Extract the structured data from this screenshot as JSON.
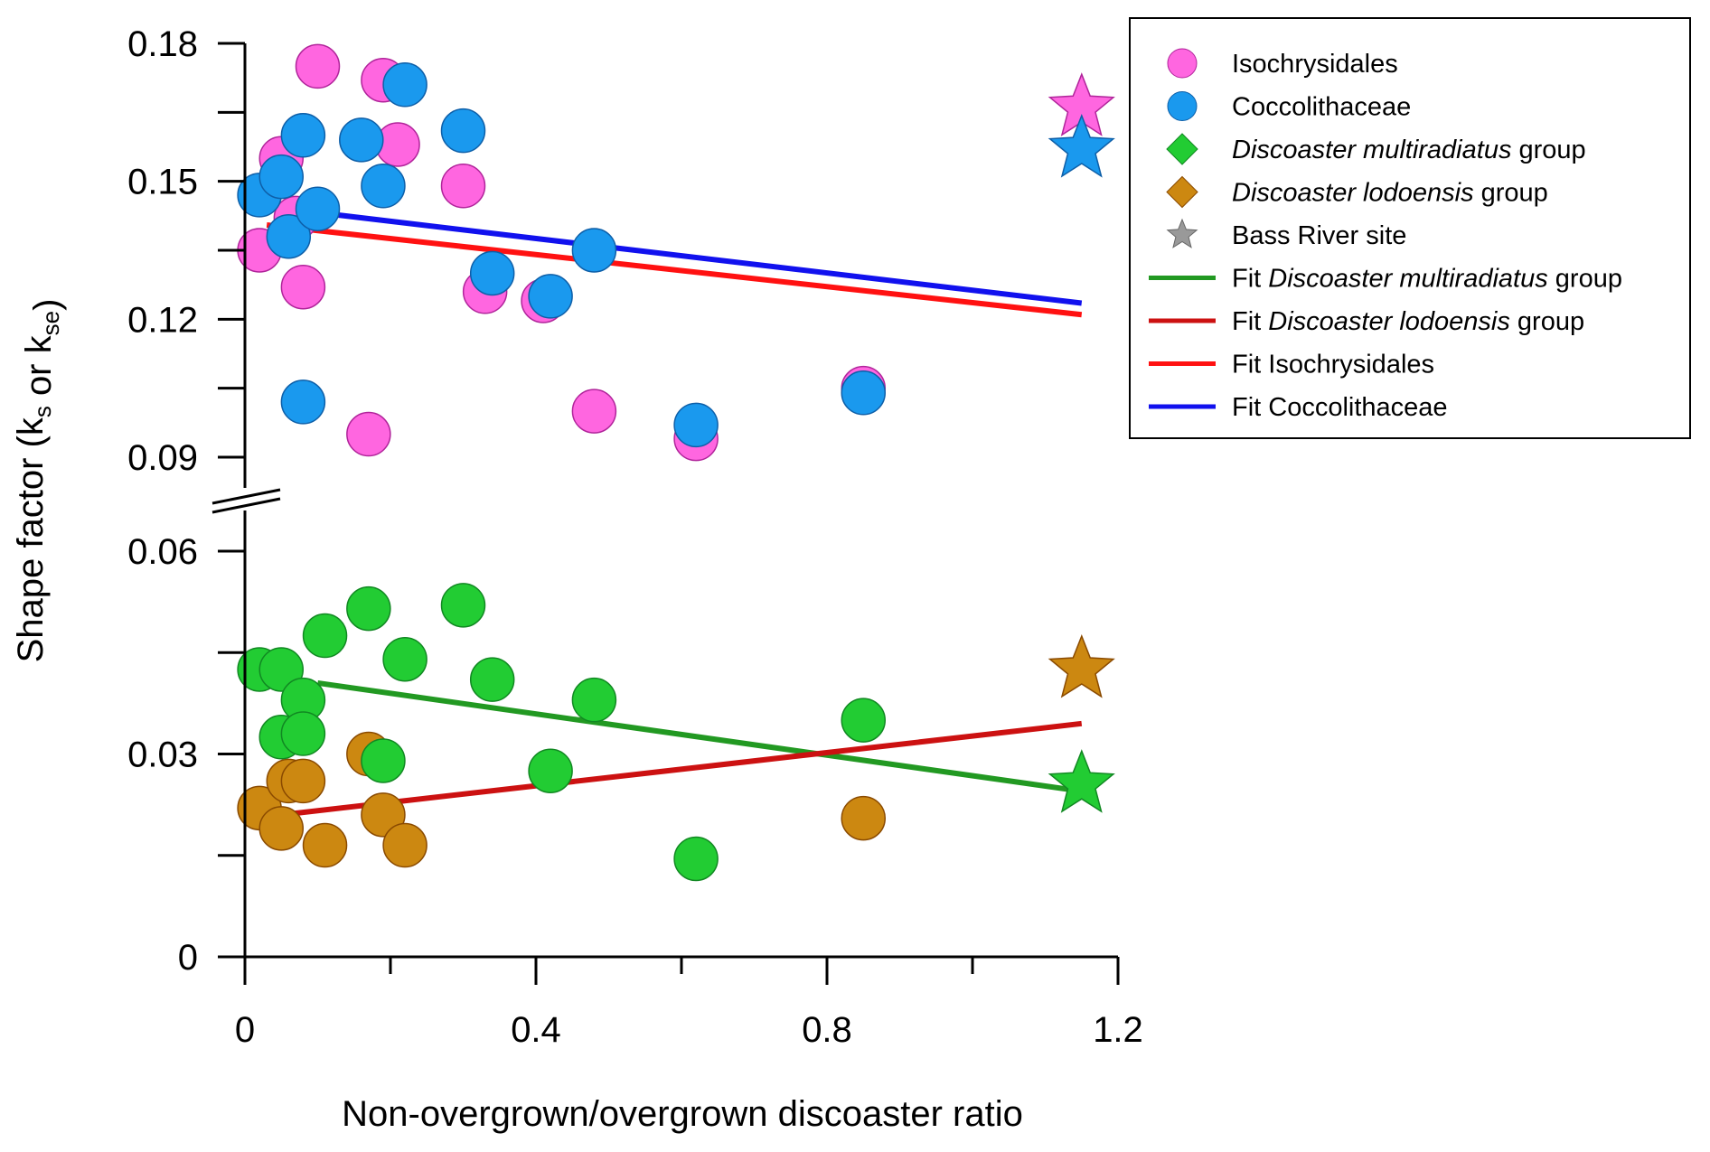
{
  "chart_data": {
    "type": "scatter",
    "xlabel": "Non-overgrown/overgrown discoaster ratio",
    "ylabel": {
      "main": "Shape factor (k",
      "sub1": "s",
      "mid": " or k",
      "sub2": "se",
      "end": ")"
    },
    "xlim": [
      0,
      1.2
    ],
    "x_ticks_major": [
      "0",
      "0.4",
      "0.8",
      "1.2"
    ],
    "x_ticks_major_values": [
      0,
      0.4,
      0.8,
      1.2
    ],
    "x_ticks_minor_values": [
      0.2,
      0.6,
      1.0
    ],
    "axis_break": {
      "between": [
        0.06,
        0.09
      ]
    },
    "y_ticks_major": [
      "0",
      "0.03",
      "0.06",
      "0.09",
      "0.12",
      "0.15",
      "0.18"
    ],
    "y_ticks_major_values": [
      0,
      0.03,
      0.06,
      0.09,
      0.12,
      0.15,
      0.18
    ],
    "y_ticks_minor_values": [
      0.015,
      0.045,
      0.105,
      0.135,
      0.165
    ],
    "grid": false,
    "legend_position": "top-right outside",
    "series": [
      {
        "name": "Isochrysidales",
        "marker": "circle",
        "color": "#ff66e0",
        "edge": "#b0249a",
        "points": [
          [
            0.02,
            0.135
          ],
          [
            0.05,
            0.155
          ],
          [
            0.07,
            0.142
          ],
          [
            0.08,
            0.127
          ],
          [
            0.1,
            0.175
          ],
          [
            0.19,
            0.172
          ],
          [
            0.21,
            0.158
          ],
          [
            0.3,
            0.149
          ],
          [
            0.33,
            0.126
          ],
          [
            0.41,
            0.124
          ],
          [
            0.48,
            0.1
          ],
          [
            0.62,
            0.094
          ],
          [
            0.85,
            0.105
          ],
          [
            0.17,
            0.095
          ]
        ]
      },
      {
        "name": "Coccolithaceae",
        "marker": "circle",
        "color": "#1a99ee",
        "edge": "#0e5fa8",
        "points": [
          [
            0.02,
            0.147
          ],
          [
            0.05,
            0.151
          ],
          [
            0.06,
            0.138
          ],
          [
            0.08,
            0.16
          ],
          [
            0.1,
            0.144
          ],
          [
            0.16,
            0.159
          ],
          [
            0.19,
            0.149
          ],
          [
            0.22,
            0.171
          ],
          [
            0.3,
            0.161
          ],
          [
            0.34,
            0.13
          ],
          [
            0.42,
            0.125
          ],
          [
            0.48,
            0.135
          ],
          [
            0.62,
            0.097
          ],
          [
            0.85,
            0.104
          ],
          [
            0.08,
            0.102
          ]
        ]
      },
      {
        "name_parts": [
          "Discoaster multiradiatus",
          " group"
        ],
        "marker": "circle",
        "legend_marker": "diamond",
        "color": "#22cc33",
        "edge": "#118822",
        "points": [
          [
            0.02,
            0.0425
          ],
          [
            0.05,
            0.0425
          ],
          [
            0.05,
            0.0325
          ],
          [
            0.08,
            0.038
          ],
          [
            0.08,
            0.033
          ],
          [
            0.11,
            0.0475
          ],
          [
            0.17,
            0.0515
          ],
          [
            0.22,
            0.044
          ],
          [
            0.3,
            0.052
          ],
          [
            0.34,
            0.041
          ],
          [
            0.42,
            0.0275
          ],
          [
            0.48,
            0.038
          ],
          [
            0.62,
            0.0145
          ],
          [
            0.85,
            0.035
          ],
          [
            0.19,
            0.029
          ]
        ]
      },
      {
        "name_parts": [
          "Discoaster lodoensis",
          " group"
        ],
        "marker": "circle",
        "legend_marker": "diamond",
        "color": "#cc8811",
        "edge": "#8a4a00",
        "points": [
          [
            0.02,
            0.022
          ],
          [
            0.05,
            0.019
          ],
          [
            0.06,
            0.026
          ],
          [
            0.08,
            0.026
          ],
          [
            0.11,
            0.0165
          ],
          [
            0.17,
            0.03
          ],
          [
            0.19,
            0.021
          ],
          [
            0.22,
            0.0165
          ],
          [
            0.85,
            0.0205
          ]
        ]
      },
      {
        "name": "Bass River site",
        "marker": "star",
        "color": "#999999",
        "edge": "#666666",
        "points": []
      }
    ],
    "bass_river_stars": [
      {
        "x": 1.15,
        "y": 0.166,
        "color": "#ff66e0",
        "edge": "#b0249a"
      },
      {
        "x": 1.15,
        "y": 0.157,
        "color": "#1a99ee",
        "edge": "#0e5fa8"
      },
      {
        "x": 1.15,
        "y": 0.0425,
        "color": "#cc8811",
        "edge": "#8a4a00"
      },
      {
        "x": 1.15,
        "y": 0.0255,
        "color": "#22cc33",
        "edge": "#118822"
      }
    ],
    "fits": [
      {
        "name_parts": [
          "Fit ",
          "Discoaster multiradiatus",
          " group"
        ],
        "color": "#229922",
        "x": [
          0.1,
          1.15
        ],
        "y": [
          0.0405,
          0.0245
        ]
      },
      {
        "name_parts": [
          "Fit ",
          "Discoaster lodoensis",
          " group"
        ],
        "color": "#cc1111",
        "x": [
          0.05,
          1.15
        ],
        "y": [
          0.021,
          0.0345
        ]
      },
      {
        "name": "Fit Isochrysidales",
        "color": "#ff1111",
        "x": [
          0.03,
          1.15
        ],
        "y": [
          0.1405,
          0.121
        ]
      },
      {
        "name": "Fit Coccolithaceae",
        "color": "#1111ee",
        "x": [
          0.03,
          1.15
        ],
        "y": [
          0.1445,
          0.1235
        ]
      }
    ]
  }
}
